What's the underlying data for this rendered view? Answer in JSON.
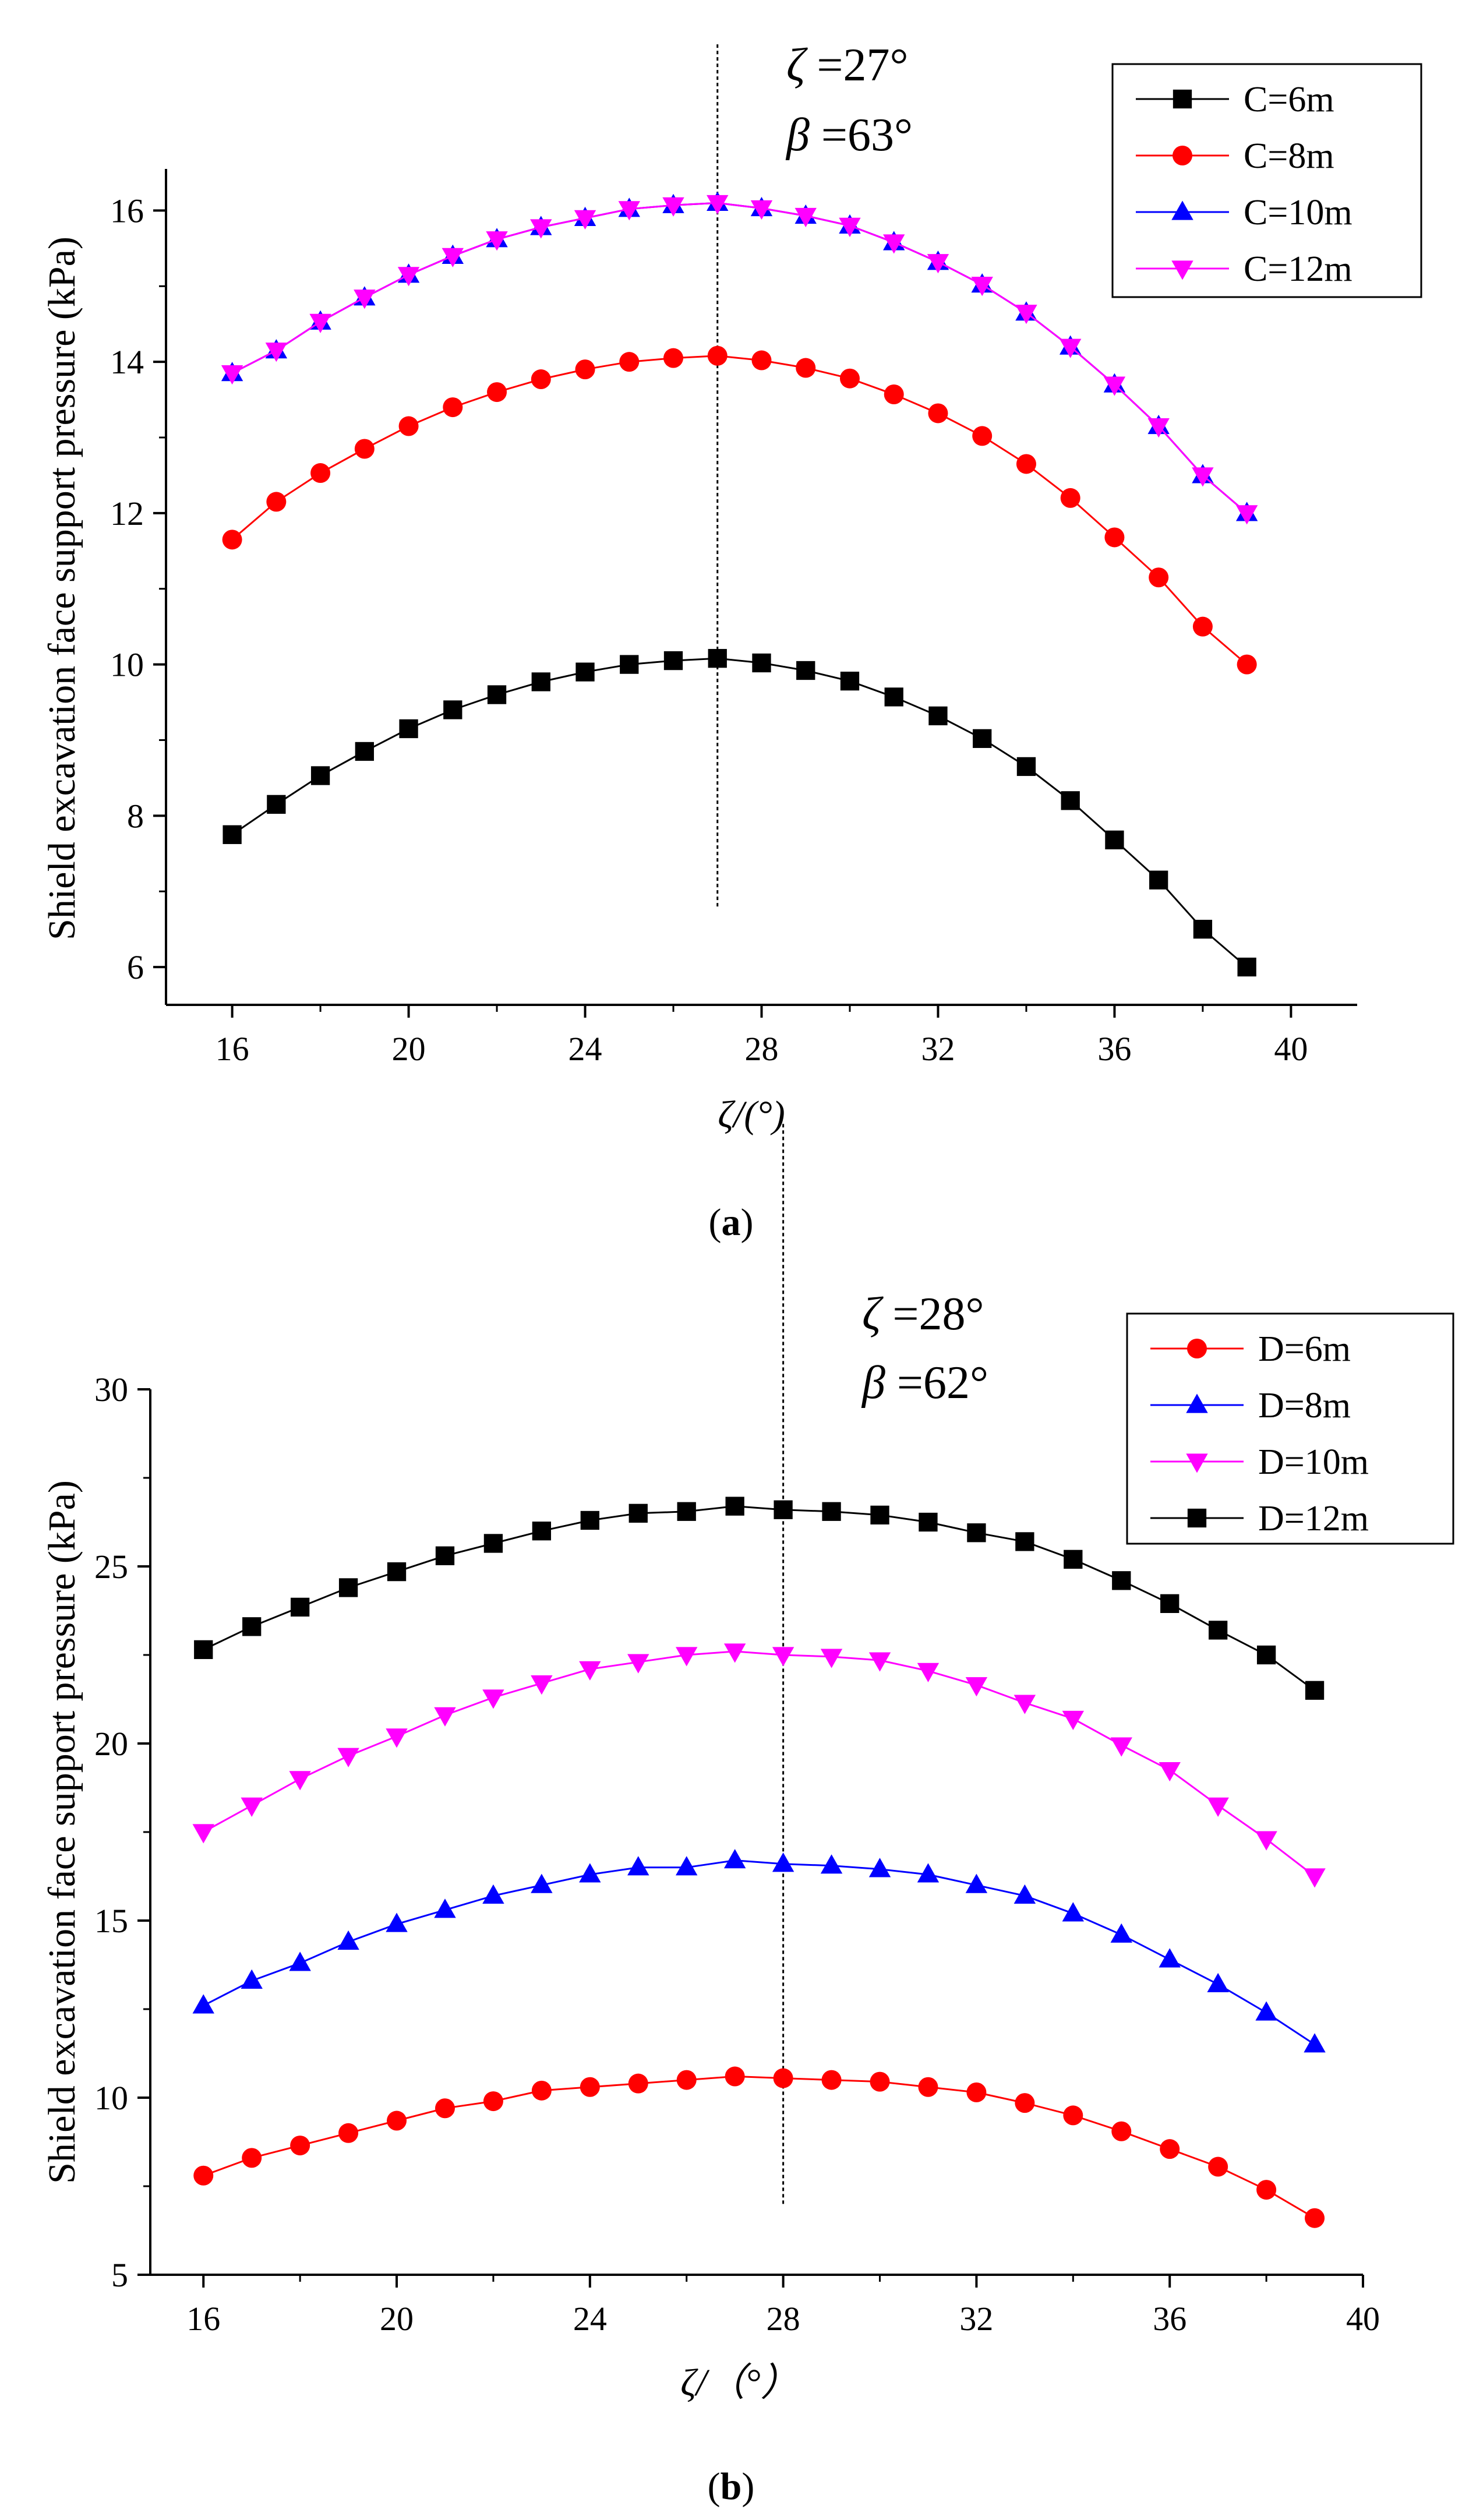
{
  "chart_data": [
    {
      "panel_label": "(a)",
      "panel_letter": "a",
      "type": "line",
      "xlabel": "ζ/(°)",
      "ylabel": "Shield excavation face support pressure (kPa)",
      "xlim": [
        14.5,
        41.5
      ],
      "ylim": [
        5.5,
        16.55
      ],
      "xticks": [
        16,
        20,
        24,
        28,
        32,
        36,
        40
      ],
      "yticks": [
        6,
        8,
        10,
        12,
        14,
        16
      ],
      "x": [
        16,
        17,
        18,
        19,
        20,
        21,
        22,
        23,
        24,
        25,
        26,
        27,
        28,
        29,
        30,
        31,
        32,
        33,
        34,
        35,
        36,
        37,
        38,
        39
      ],
      "series": [
        {
          "name": "C=6m",
          "color": "#000000",
          "marker": "square",
          "values": [
            7.75,
            8.15,
            8.53,
            8.85,
            9.15,
            9.4,
            9.6,
            9.77,
            9.9,
            10.0,
            10.05,
            10.08,
            10.02,
            9.92,
            9.78,
            9.57,
            9.32,
            9.02,
            8.65,
            8.2,
            7.68,
            7.15,
            6.5,
            6.0
          ]
        },
        {
          "name": "C=8m",
          "color": "#ff0000",
          "marker": "circle",
          "values": [
            11.65,
            12.15,
            12.53,
            12.85,
            13.15,
            13.4,
            13.6,
            13.77,
            13.9,
            14.0,
            14.05,
            14.08,
            14.02,
            13.92,
            13.78,
            13.57,
            13.32,
            13.02,
            12.65,
            12.2,
            11.68,
            11.15,
            10.5,
            10.0
          ]
        },
        {
          "name": "C=10m",
          "color": "#0000ff",
          "marker": "triangle-up",
          "values": [
            13.85,
            14.15,
            14.53,
            14.85,
            15.15,
            15.4,
            15.62,
            15.78,
            15.9,
            16.02,
            16.07,
            16.1,
            16.03,
            15.93,
            15.8,
            15.58,
            15.32,
            15.02,
            14.65,
            14.2,
            13.7,
            13.15,
            12.5,
            12.0
          ]
        },
        {
          "name": "C=12m",
          "color": "#ff00ff",
          "marker": "triangle-down",
          "values": [
            13.85,
            14.15,
            14.53,
            14.85,
            15.15,
            15.4,
            15.62,
            15.78,
            15.9,
            16.02,
            16.07,
            16.1,
            16.03,
            15.93,
            15.8,
            15.58,
            15.32,
            15.02,
            14.65,
            14.2,
            13.7,
            13.15,
            12.5,
            12.0
          ]
        }
      ],
      "reference_line": {
        "x": 27,
        "y_from": 6.8,
        "y_to": 18.2
      },
      "annotations": [
        {
          "symbol": "ζ",
          "text": " =27°"
        },
        {
          "symbol": "β",
          "text": " =63°"
        }
      ],
      "legend_position": "top-right"
    },
    {
      "panel_label": "(b)",
      "panel_letter": "b",
      "type": "line",
      "xlabel": "ζ/（°）",
      "ylabel": "Shield excavation face support pressure (kPa)",
      "xlim": [
        14.9,
        40
      ],
      "ylim": [
        5,
        30
      ],
      "xticks": [
        16,
        20,
        24,
        28,
        32,
        36,
        40
      ],
      "yticks": [
        5,
        10,
        15,
        20,
        25,
        30
      ],
      "x": [
        16,
        17,
        18,
        19,
        20,
        21,
        22,
        23,
        24,
        25,
        26,
        27,
        28,
        29,
        30,
        31,
        32,
        33,
        34,
        35,
        36,
        37,
        38,
        39
      ],
      "series": [
        {
          "name": "D=6m",
          "color": "#ff0000",
          "marker": "circle",
          "values": [
            7.8,
            8.3,
            8.65,
            9.0,
            9.35,
            9.7,
            9.9,
            10.2,
            10.3,
            10.4,
            10.5,
            10.6,
            10.55,
            10.5,
            10.45,
            10.3,
            10.15,
            9.85,
            9.5,
            9.05,
            8.55,
            8.05,
            7.4,
            6.6
          ]
        },
        {
          "name": "D=8m",
          "color": "#0000ff",
          "marker": "triangle-up",
          "values": [
            12.6,
            13.3,
            13.8,
            14.4,
            14.9,
            15.3,
            15.7,
            16.0,
            16.3,
            16.5,
            16.5,
            16.7,
            16.6,
            16.55,
            16.45,
            16.3,
            16.0,
            15.7,
            15.2,
            14.6,
            13.9,
            13.2,
            12.4,
            11.5
          ]
        },
        {
          "name": "D=10m",
          "color": "#ff00ff",
          "marker": "triangle-down",
          "values": [
            17.5,
            18.25,
            19.0,
            19.65,
            20.2,
            20.8,
            21.3,
            21.7,
            22.1,
            22.3,
            22.5,
            22.6,
            22.5,
            22.45,
            22.35,
            22.05,
            21.65,
            21.15,
            20.7,
            19.95,
            19.25,
            18.25,
            17.3,
            16.25
          ]
        },
        {
          "name": "D=12m",
          "color": "#000000",
          "marker": "square",
          "values": [
            22.65,
            23.3,
            23.85,
            24.4,
            24.85,
            25.3,
            25.65,
            26.0,
            26.3,
            26.5,
            26.55,
            26.7,
            26.6,
            26.55,
            26.45,
            26.25,
            25.95,
            25.7,
            25.2,
            24.6,
            23.95,
            23.2,
            22.5,
            21.5
          ]
        }
      ],
      "reference_line": {
        "x": 28,
        "y_from": 7.0,
        "y_to": 37.5
      },
      "annotations": [
        {
          "symbol": "ζ",
          "text": " =28°"
        },
        {
          "symbol": "β",
          "text": " =62°"
        }
      ],
      "legend_position": "top-right"
    }
  ]
}
